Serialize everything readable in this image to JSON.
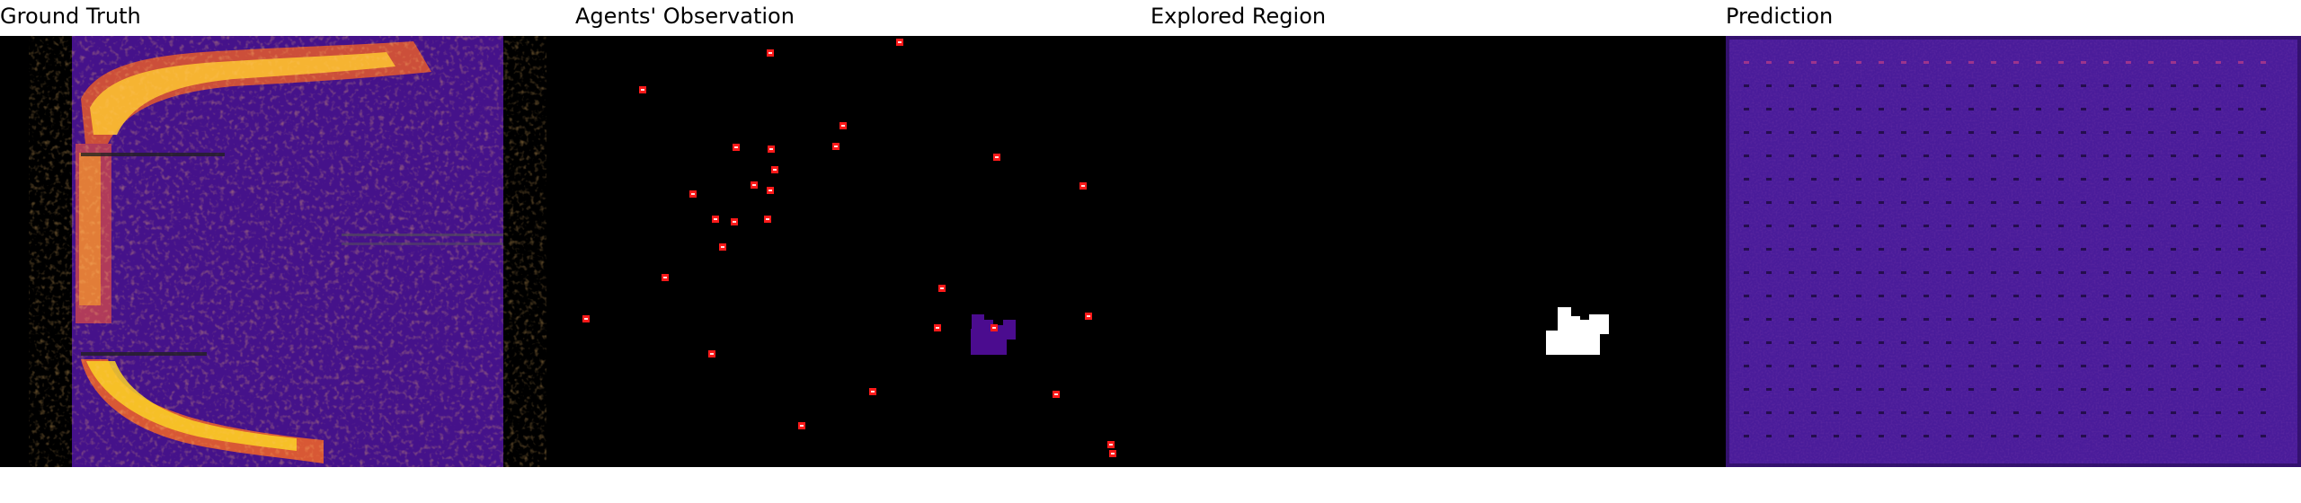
{
  "panels": [
    {
      "title": "Ground Truth",
      "icon": "heatmap-image"
    },
    {
      "title": "Agents' Observation",
      "icon": "agent-markers-image"
    },
    {
      "title": "Explored Region",
      "icon": "explored-mask-image"
    },
    {
      "title": "Prediction",
      "icon": "prediction-heatmap-image"
    }
  ],
  "colors": {
    "background_black": "#000000",
    "heatmap_low": "#3a0f7a",
    "heatmap_mid": "#b83289",
    "heatmap_high": "#fcd225",
    "agent_marker": "#ff1a1a",
    "explored_white": "#ffffff",
    "observed_purple": "#4b0c8f"
  }
}
